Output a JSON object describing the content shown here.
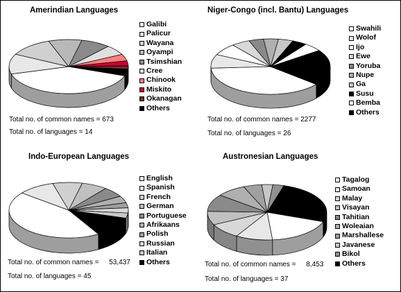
{
  "chart_data": [
    {
      "type": "pie",
      "title": "Amerindian Languages",
      "categories": [
        "Galibi",
        "Palicur",
        "Wayana",
        "Oyampi",
        "Tsimshian",
        "Cree",
        "Chinook",
        "Miskito",
        "Okanagan",
        "Others"
      ],
      "values": [
        40,
        12,
        12,
        9,
        8,
        6,
        4,
        3,
        2,
        4
      ],
      "colors": [
        "#ffffff",
        "#e8e8e8",
        "#d0d0d0",
        "#b8b8b8",
        "#8a8a8a",
        "#e0e0e0",
        "#ff8080",
        "#cc0033",
        "#7a2a2a",
        "#000000"
      ],
      "legend_position": "right",
      "stats": [
        {
          "label": "Total no. of common names =",
          "value": "673"
        },
        {
          "label": "Total no. of languages =",
          "value": "14"
        }
      ]
    },
    {
      "type": "pie",
      "title": "Niger-Congo (incl. Bantu) Languages",
      "categories": [
        "Swahili",
        "Wolof",
        "Ijo",
        "Ewe",
        "Yoruba",
        "Nupe",
        "Ga",
        "Susu",
        "Bemba",
        "Others"
      ],
      "values": [
        38,
        8,
        7,
        5,
        4,
        4,
        4,
        4,
        5,
        21
      ],
      "colors": [
        "#ffffff",
        "#e8e8e8",
        "#ffffff",
        "#d8d8d8",
        "#8a8a8a",
        "#b0b0b0",
        "#c8c8c8",
        "#000000",
        "#ffffff",
        "#000000"
      ],
      "legend_position": "right",
      "stats": [
        {
          "label": "Total no. of common names =",
          "value": "2277"
        },
        {
          "label": "Total no. of languages =",
          "value": "26"
        }
      ]
    },
    {
      "type": "pie",
      "title": "Indo-European Languages",
      "categories": [
        "English",
        "Spanish",
        "French",
        "German",
        "Portuguese",
        "Afrikaans",
        "Polish",
        "Russian",
        "Italian",
        "Others"
      ],
      "values": [
        44,
        10,
        8,
        7,
        6,
        4,
        3,
        3,
        3,
        12
      ],
      "colors": [
        "#ffffff",
        "#e8e8e8",
        "#d0d0d0",
        "#c0c0c0",
        "#8a8a8a",
        "#b0b0b0",
        "#a0a0a0",
        "#d8d8d8",
        "#c8c8c8",
        "#000000"
      ],
      "legend_position": "right",
      "stats": [
        {
          "label": "Total no. of common names =",
          "value": "53,437"
        },
        {
          "label": "Total no. of languages =",
          "value": "45"
        }
      ]
    },
    {
      "type": "pie",
      "title": "Austronesian Languages",
      "categories": [
        "Tagalog",
        "Samoan",
        "Malay",
        "Visayan",
        "Tahitian",
        "Woleaian",
        "Marshallese",
        "Javanese",
        "Bikol",
        "Others"
      ],
      "values": [
        18,
        10,
        9,
        8,
        10,
        8,
        5,
        3,
        3,
        26
      ],
      "colors": [
        "#ffffff",
        "#e8e8e8",
        "#d8d8d8",
        "#c0c0c0",
        "#8a8a8a",
        "#b0b0b0",
        "#a0a0a0",
        "#c8c8c8",
        "#909090",
        "#000000"
      ],
      "legend_position": "right",
      "stats": [
        {
          "label": "Total no. of common names =",
          "value": "8,453"
        },
        {
          "label": "Total no. of languages =",
          "value": "37"
        }
      ]
    }
  ]
}
